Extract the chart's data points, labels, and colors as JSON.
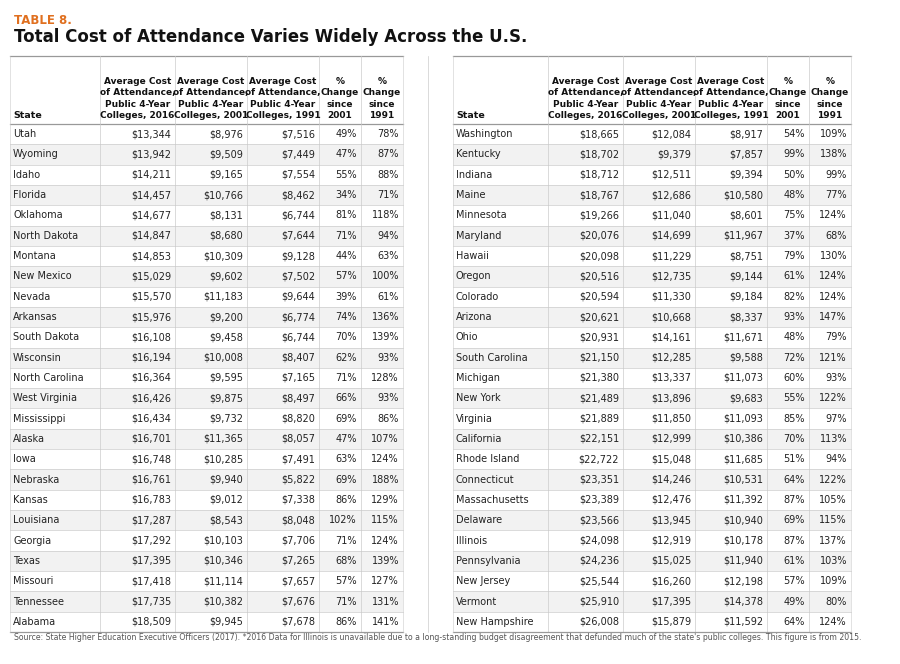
{
  "table_label": "TABLE 8.",
  "title": "Total Cost of Attendance Varies Widely Across the U.S.",
  "col_headers_lines": [
    [
      "",
      "",
      "",
      "",
      "",
      ""
    ],
    [
      "Average Cost",
      "Average Cost",
      "Average Cost",
      "%",
      "%",
      ""
    ],
    [
      "of Attendance,",
      "of Attendance,",
      "of Attendance,",
      "Change",
      "Change",
      ""
    ],
    [
      "Public 4-Year",
      "Public 4-Year",
      "Public 4-Year",
      "since",
      "since",
      ""
    ],
    [
      "Colleges, 2016",
      "Colleges, 2001",
      "Colleges, 1991",
      "2001",
      "1991",
      ""
    ],
    [
      "State",
      "",
      "",
      "",
      "",
      "State"
    ]
  ],
  "left_data": [
    [
      "Utah",
      "$13,344",
      "$8,976",
      "$7,516",
      "49%",
      "78%"
    ],
    [
      "Wyoming",
      "$13,942",
      "$9,509",
      "$7,449",
      "47%",
      "87%"
    ],
    [
      "Idaho",
      "$14,211",
      "$9,165",
      "$7,554",
      "55%",
      "88%"
    ],
    [
      "Florida",
      "$14,457",
      "$10,766",
      "$8,462",
      "34%",
      "71%"
    ],
    [
      "Oklahoma",
      "$14,677",
      "$8,131",
      "$6,744",
      "81%",
      "118%"
    ],
    [
      "North Dakota",
      "$14,847",
      "$8,680",
      "$7,644",
      "71%",
      "94%"
    ],
    [
      "Montana",
      "$14,853",
      "$10,309",
      "$9,128",
      "44%",
      "63%"
    ],
    [
      "New Mexico",
      "$15,029",
      "$9,602",
      "$7,502",
      "57%",
      "100%"
    ],
    [
      "Nevada",
      "$15,570",
      "$11,183",
      "$9,644",
      "39%",
      "61%"
    ],
    [
      "Arkansas",
      "$15,976",
      "$9,200",
      "$6,774",
      "74%",
      "136%"
    ],
    [
      "South Dakota",
      "$16,108",
      "$9,458",
      "$6,744",
      "70%",
      "139%"
    ],
    [
      "Wisconsin",
      "$16,194",
      "$10,008",
      "$8,407",
      "62%",
      "93%"
    ],
    [
      "North Carolina",
      "$16,364",
      "$9,595",
      "$7,165",
      "71%",
      "128%"
    ],
    [
      "West Virginia",
      "$16,426",
      "$9,875",
      "$8,497",
      "66%",
      "93%"
    ],
    [
      "Mississippi",
      "$16,434",
      "$9,732",
      "$8,820",
      "69%",
      "86%"
    ],
    [
      "Alaska",
      "$16,701",
      "$11,365",
      "$8,057",
      "47%",
      "107%"
    ],
    [
      "Iowa",
      "$16,748",
      "$10,285",
      "$7,491",
      "63%",
      "124%"
    ],
    [
      "Nebraska",
      "$16,761",
      "$9,940",
      "$5,822",
      "69%",
      "188%"
    ],
    [
      "Kansas",
      "$16,783",
      "$9,012",
      "$7,338",
      "86%",
      "129%"
    ],
    [
      "Louisiana",
      "$17,287",
      "$8,543",
      "$8,048",
      "102%",
      "115%"
    ],
    [
      "Georgia",
      "$17,292",
      "$10,103",
      "$7,706",
      "71%",
      "124%"
    ],
    [
      "Texas",
      "$17,395",
      "$10,346",
      "$7,265",
      "68%",
      "139%"
    ],
    [
      "Missouri",
      "$17,418",
      "$11,114",
      "$7,657",
      "57%",
      "127%"
    ],
    [
      "Tennessee",
      "$17,735",
      "$10,382",
      "$7,676",
      "71%",
      "131%"
    ],
    [
      "Alabama",
      "$18,509",
      "$9,945",
      "$7,678",
      "86%",
      "141%"
    ]
  ],
  "right_data": [
    [
      "Washington",
      "$18,665",
      "$12,084",
      "$8,917",
      "54%",
      "109%"
    ],
    [
      "Kentucky",
      "$18,702",
      "$9,379",
      "$7,857",
      "99%",
      "138%"
    ],
    [
      "Indiana",
      "$18,712",
      "$12,511",
      "$9,394",
      "50%",
      "99%"
    ],
    [
      "Maine",
      "$18,767",
      "$12,686",
      "$10,580",
      "48%",
      "77%"
    ],
    [
      "Minnesota",
      "$19,266",
      "$11,040",
      "$8,601",
      "75%",
      "124%"
    ],
    [
      "Maryland",
      "$20,076",
      "$14,699",
      "$11,967",
      "37%",
      "68%"
    ],
    [
      "Hawaii",
      "$20,098",
      "$11,229",
      "$8,751",
      "79%",
      "130%"
    ],
    [
      "Oregon",
      "$20,516",
      "$12,735",
      "$9,144",
      "61%",
      "124%"
    ],
    [
      "Colorado",
      "$20,594",
      "$11,330",
      "$9,184",
      "82%",
      "124%"
    ],
    [
      "Arizona",
      "$20,621",
      "$10,668",
      "$8,337",
      "93%",
      "147%"
    ],
    [
      "Ohio",
      "$20,931",
      "$14,161",
      "$11,671",
      "48%",
      "79%"
    ],
    [
      "South Carolina",
      "$21,150",
      "$12,285",
      "$9,588",
      "72%",
      "121%"
    ],
    [
      "Michigan",
      "$21,380",
      "$13,337",
      "$11,073",
      "60%",
      "93%"
    ],
    [
      "New York",
      "$21,489",
      "$13,896",
      "$9,683",
      "55%",
      "122%"
    ],
    [
      "Virginia",
      "$21,889",
      "$11,850",
      "$11,093",
      "85%",
      "97%"
    ],
    [
      "California",
      "$22,151",
      "$12,999",
      "$10,386",
      "70%",
      "113%"
    ],
    [
      "Rhode Island",
      "$22,722",
      "$15,048",
      "$11,685",
      "51%",
      "94%"
    ],
    [
      "Connecticut",
      "$23,351",
      "$14,246",
      "$10,531",
      "64%",
      "122%"
    ],
    [
      "Massachusetts",
      "$23,389",
      "$12,476",
      "$11,392",
      "87%",
      "105%"
    ],
    [
      "Delaware",
      "$23,566",
      "$13,945",
      "$10,940",
      "69%",
      "115%"
    ],
    [
      "Illinois",
      "$24,098",
      "$12,919",
      "$10,178",
      "87%",
      "137%"
    ],
    [
      "Pennsylvania",
      "$24,236",
      "$15,025",
      "$11,940",
      "61%",
      "103%"
    ],
    [
      "New Jersey",
      "$25,544",
      "$16,260",
      "$12,198",
      "57%",
      "109%"
    ],
    [
      "Vermont",
      "$25,910",
      "$17,395",
      "$14,378",
      "49%",
      "80%"
    ],
    [
      "New Hampshire",
      "$26,008",
      "$15,879",
      "$11,592",
      "64%",
      "124%"
    ]
  ],
  "footnote": "Source: State Higher Education Executive Officers (2017). *2016 Data for Illinois is unavailable due to a long-standing budget disagreement that defunded much of the state's public colleges. This figure is from 2015.",
  "table_label_color": "#E07020",
  "even_row_color": "#F2F2F2",
  "odd_row_color": "#FFFFFF",
  "header_line_color": "#999999",
  "row_line_color": "#CCCCCC",
  "text_color": "#222222",
  "footnote_color": "#555555"
}
